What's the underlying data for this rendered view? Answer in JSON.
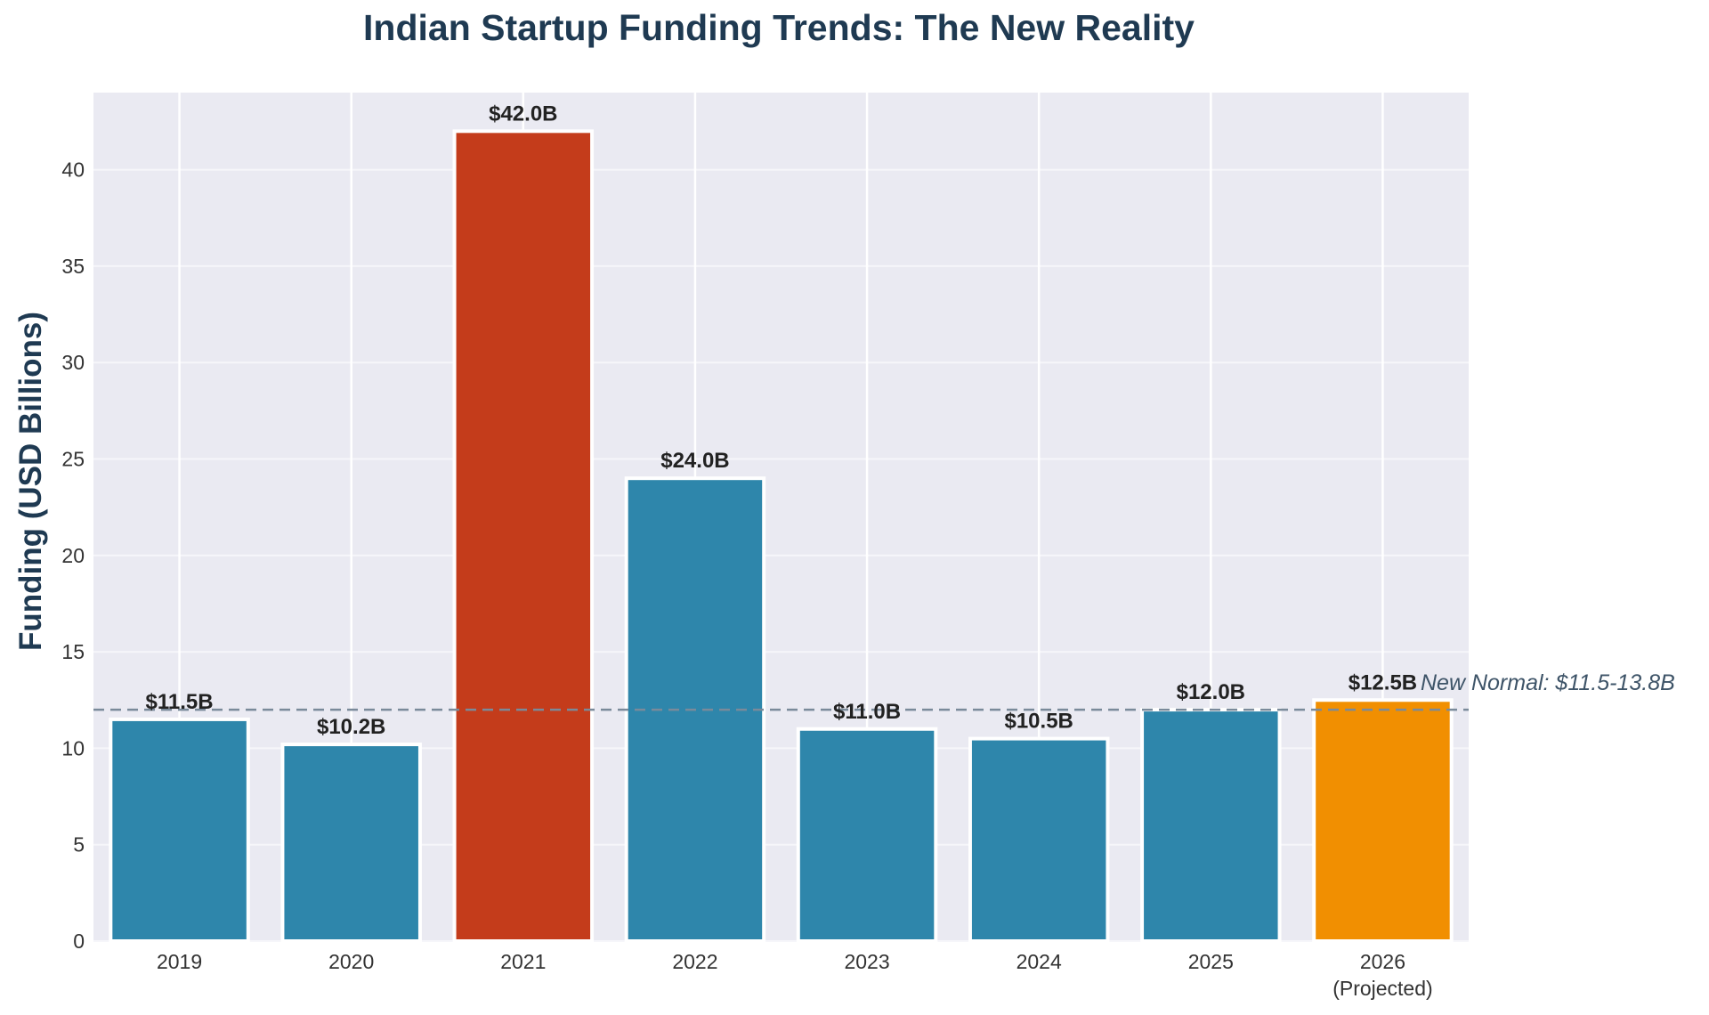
{
  "chart_data": {
    "type": "bar",
    "title": "Indian Startup Funding Trends: The New Reality",
    "ylabel": "Funding (USD Billions)",
    "xlabel": "",
    "categories": [
      "2019",
      "2020",
      "2021",
      "2022",
      "2023",
      "2024",
      "2025",
      "2026\n(Projected)"
    ],
    "values": [
      11.5,
      10.2,
      42.0,
      24.0,
      11.0,
      10.5,
      12.0,
      12.5
    ],
    "data_labels": [
      "$11.5B",
      "$10.2B",
      "$42.0B",
      "$24.0B",
      "$11.0B",
      "$10.5B",
      "$12.0B",
      "$12.5B"
    ],
    "bar_colors": [
      "#2e86ab",
      "#2e86ab",
      "#c43c1b",
      "#2e86ab",
      "#2e86ab",
      "#2e86ab",
      "#2e86ab",
      "#f18f01"
    ],
    "ylim": [
      0,
      44
    ],
    "yticks": [
      0,
      5,
      10,
      15,
      20,
      25,
      30,
      35,
      40
    ],
    "reference_line": {
      "value": 12.0,
      "label": "New Normal: $11.5-13.8B",
      "style": "dashed",
      "color": "#7a8a9a"
    },
    "grid": true,
    "plot_background": "#eaeaf2",
    "legend": "none"
  }
}
